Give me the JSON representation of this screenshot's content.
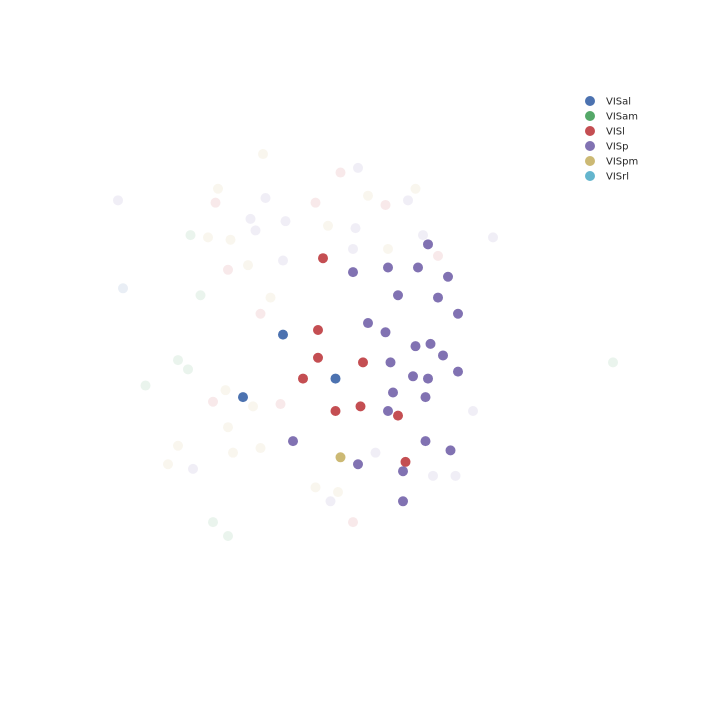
{
  "chart_data": {
    "type": "scatter",
    "title": "",
    "xlabel": "",
    "ylabel": "",
    "axes_visible": false,
    "grid": false,
    "legend_position": "top-right",
    "xlim": [
      0,
      100
    ],
    "ylim": [
      0,
      100
    ],
    "series": [
      {
        "name": "VISal",
        "color": "#4c72b0",
        "highlighted": [
          [
            33.0,
            53.0
          ],
          [
            43.5,
            43.5
          ],
          [
            25.0,
            39.5
          ]
        ],
        "faded": [
          [
            1.0,
            63.0
          ]
        ]
      },
      {
        "name": "VISam",
        "color": "#55a868",
        "highlighted": [],
        "faded": [
          [
            14.5,
            74.5
          ],
          [
            16.5,
            61.5
          ],
          [
            12.0,
            47.5
          ],
          [
            14.0,
            45.5
          ],
          [
            5.5,
            42.0
          ],
          [
            19.0,
            12.5
          ],
          [
            22.0,
            9.5
          ],
          [
            99.0,
            47.0
          ]
        ]
      },
      {
        "name": "VISl",
        "color": "#c44e52",
        "highlighted": [
          [
            41.0,
            69.5
          ],
          [
            40.0,
            54.0
          ],
          [
            40.0,
            48.0
          ],
          [
            37.0,
            43.5
          ],
          [
            49.0,
            47.0
          ],
          [
            48.5,
            37.5
          ],
          [
            43.5,
            36.5
          ],
          [
            56.0,
            35.5
          ],
          [
            57.5,
            25.5
          ]
        ],
        "faded": [
          [
            44.5,
            88.0
          ],
          [
            19.5,
            81.5
          ],
          [
            39.5,
            81.5
          ],
          [
            53.5,
            81.0
          ],
          [
            22.0,
            67.0
          ],
          [
            28.5,
            57.5
          ],
          [
            32.5,
            38.0
          ],
          [
            19.0,
            38.5
          ],
          [
            47.0,
            12.5
          ],
          [
            64.0,
            70.0
          ]
        ]
      },
      {
        "name": "VISp",
        "color": "#8172b2",
        "highlighted": [
          [
            62.0,
            72.5
          ],
          [
            47.0,
            66.5
          ],
          [
            54.0,
            67.5
          ],
          [
            60.0,
            67.5
          ],
          [
            66.0,
            65.5
          ],
          [
            56.0,
            61.5
          ],
          [
            64.0,
            61.0
          ],
          [
            68.0,
            57.5
          ],
          [
            50.0,
            55.5
          ],
          [
            53.5,
            53.5
          ],
          [
            59.5,
            50.5
          ],
          [
            62.5,
            51.0
          ],
          [
            65.0,
            48.5
          ],
          [
            54.5,
            47.0
          ],
          [
            68.0,
            45.0
          ],
          [
            59.0,
            44.0
          ],
          [
            62.0,
            43.5
          ],
          [
            55.0,
            40.5
          ],
          [
            61.5,
            39.5
          ],
          [
            54.0,
            36.5
          ],
          [
            35.0,
            30.0
          ],
          [
            61.5,
            30.0
          ],
          [
            66.5,
            28.0
          ],
          [
            48.0,
            25.0
          ],
          [
            57.0,
            23.5
          ],
          [
            57.0,
            17.0
          ]
        ],
        "faded": [
          [
            48.0,
            89.0
          ],
          [
            0.0,
            82.0
          ],
          [
            29.5,
            82.5
          ],
          [
            58.0,
            82.0
          ],
          [
            26.5,
            78.0
          ],
          [
            33.5,
            77.5
          ],
          [
            27.5,
            75.5
          ],
          [
            47.5,
            76.0
          ],
          [
            61.0,
            74.5
          ],
          [
            75.0,
            74.0
          ],
          [
            47.0,
            71.5
          ],
          [
            33.0,
            69.0
          ],
          [
            51.5,
            27.5
          ],
          [
            15.0,
            24.0
          ],
          [
            63.0,
            22.5
          ],
          [
            67.5,
            22.5
          ],
          [
            71.0,
            36.5
          ],
          [
            42.5,
            17.0
          ]
        ]
      },
      {
        "name": "VISpm",
        "color": "#ccb974",
        "highlighted": [
          [
            44.5,
            26.5
          ]
        ],
        "faded": [
          [
            29.0,
            92.0
          ],
          [
            20.0,
            84.5
          ],
          [
            50.0,
            83.0
          ],
          [
            59.5,
            84.5
          ],
          [
            42.0,
            76.5
          ],
          [
            18.0,
            74.0
          ],
          [
            22.5,
            73.5
          ],
          [
            54.0,
            71.5
          ],
          [
            26.0,
            68.0
          ],
          [
            30.5,
            61.0
          ],
          [
            21.5,
            41.0
          ],
          [
            27.0,
            37.5
          ],
          [
            22.0,
            33.0
          ],
          [
            12.0,
            29.0
          ],
          [
            23.0,
            27.5
          ],
          [
            28.5,
            28.5
          ],
          [
            10.0,
            25.0
          ],
          [
            39.5,
            20.0
          ],
          [
            44.0,
            19.0
          ]
        ]
      },
      {
        "name": "VISrl",
        "color": "#64b5cd",
        "highlighted": [],
        "faded": []
      }
    ]
  }
}
